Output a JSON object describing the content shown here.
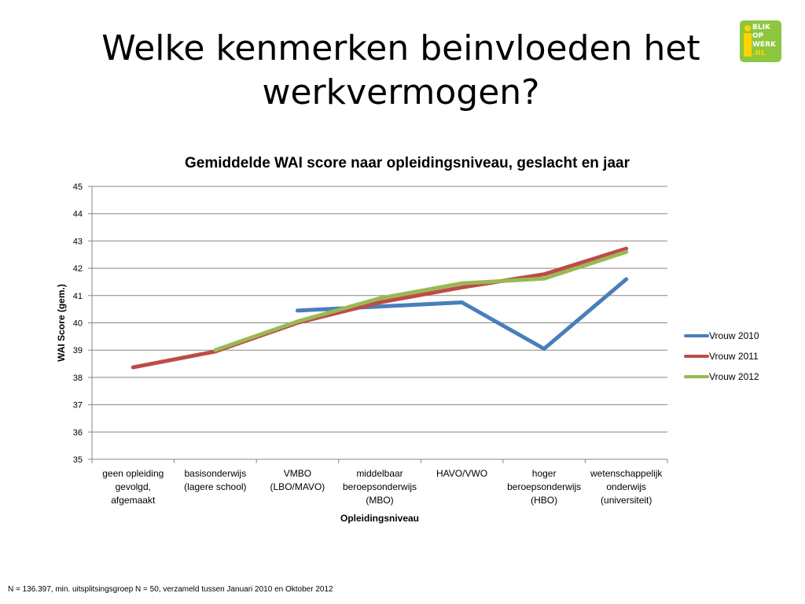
{
  "slide": {
    "title_line1": "Welke kenmerken beinvloeden het",
    "title_line2": "werkvermogen?",
    "footnote": "N = 136.397, min. uitsplitsingsgroep N = 50, verzameld tussen Januari 2010 en Oktober 2012"
  },
  "logo": {
    "words": [
      "BLIK",
      "OP",
      "WERK",
      ".NL"
    ],
    "colors": {
      "background": "#8dc63f",
      "accent": "#ffd400"
    }
  },
  "chart_data": {
    "type": "line",
    "title": "Gemiddelde WAI score naar opleidingsniveau, geslacht en jaar",
    "xlabel": "Opleidingsniveau",
    "ylabel": "WAI Score (gem.)",
    "ylim": [
      35,
      45
    ],
    "yticks": [
      35,
      36,
      37,
      38,
      39,
      40,
      41,
      42,
      43,
      44,
      45
    ],
    "grid": "horizontal",
    "legend_position": "right",
    "categories": [
      [
        "geen opleiding",
        "gevolgd,",
        "afgemaakt"
      ],
      [
        "basisonderwijs",
        "(lagere school)"
      ],
      [
        "VMBO",
        "(LBO/MAVO)"
      ],
      [
        "middelbaar",
        "beroepsonderwijs",
        "(MBO)"
      ],
      [
        "HAVO/VWO"
      ],
      [
        "hoger",
        "beroepsonderwijs",
        "(HBO)"
      ],
      [
        "wetenschappelijk",
        "onderwijs",
        "(universiteit)"
      ]
    ],
    "series": [
      {
        "name": "Vrouw 2010",
        "color": "#4a7ebb",
        "values": [
          null,
          null,
          40.45,
          40.6,
          40.75,
          39.05,
          41.6
        ]
      },
      {
        "name": "Vrouw 2011",
        "color": "#be4b48",
        "values": [
          38.37,
          38.95,
          40.0,
          40.75,
          41.3,
          41.78,
          42.72
        ]
      },
      {
        "name": "Vrouw 2012",
        "color": "#98b954",
        "values": [
          null,
          39.0,
          40.05,
          40.9,
          41.45,
          41.62,
          42.6
        ]
      }
    ]
  }
}
